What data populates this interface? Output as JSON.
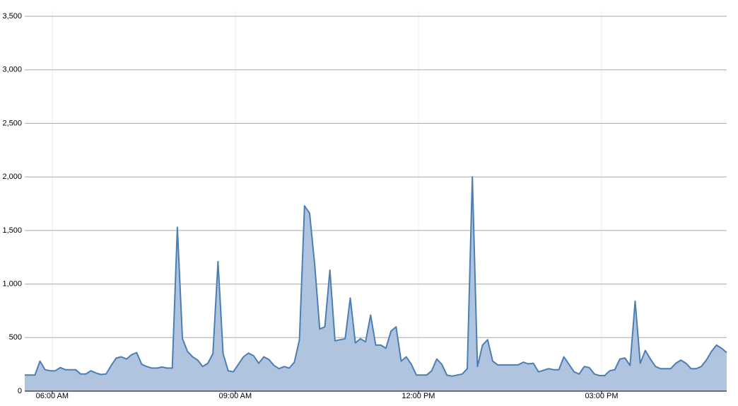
{
  "chart_data": {
    "type": "area",
    "x": [
      333,
      338,
      343,
      348,
      353,
      358,
      363,
      368,
      373,
      378,
      383,
      388,
      393,
      398,
      403,
      408,
      413,
      418,
      423,
      428,
      433,
      438,
      443,
      448,
      453,
      458,
      463,
      468,
      473,
      478,
      483,
      488,
      493,
      498,
      503,
      508,
      513,
      518,
      523,
      528,
      533,
      538,
      543,
      548,
      553,
      558,
      563,
      568,
      573,
      578,
      583,
      588,
      593,
      598,
      603,
      608,
      613,
      618,
      623,
      628,
      633,
      638,
      643,
      648,
      653,
      658,
      663,
      668,
      673,
      678,
      683,
      688,
      693,
      698,
      703,
      708,
      713,
      718,
      723,
      728,
      733,
      738,
      743,
      748,
      753,
      758,
      763,
      768,
      773,
      778,
      783,
      788,
      793,
      798,
      803,
      808,
      813,
      818,
      823,
      828,
      833,
      838,
      843,
      848,
      853,
      858,
      863,
      868,
      873,
      878,
      883,
      888,
      893,
      898,
      903,
      908,
      913,
      918,
      923,
      928,
      933,
      938,
      943,
      948,
      953,
      958,
      963,
      968,
      973,
      978,
      983,
      988,
      993,
      998,
      1003,
      1008,
      1013,
      1018,
      1023
    ],
    "values": [
      150,
      150,
      150,
      280,
      200,
      190,
      190,
      220,
      200,
      200,
      200,
      160,
      160,
      190,
      170,
      155,
      160,
      240,
      310,
      320,
      300,
      340,
      360,
      250,
      230,
      215,
      215,
      225,
      215,
      215,
      1530,
      490,
      370,
      320,
      290,
      230,
      260,
      350,
      1210,
      350,
      190,
      180,
      250,
      320,
      355,
      330,
      260,
      320,
      295,
      240,
      210,
      230,
      215,
      270,
      480,
      1730,
      1660,
      1180,
      580,
      600,
      1130,
      470,
      480,
      490,
      870,
      450,
      490,
      460,
      710,
      430,
      430,
      400,
      560,
      600,
      280,
      320,
      250,
      150,
      150,
      150,
      190,
      300,
      250,
      150,
      140,
      150,
      160,
      210,
      2000,
      230,
      430,
      480,
      280,
      245,
      245,
      245,
      245,
      245,
      270,
      255,
      260,
      180,
      195,
      210,
      200,
      200,
      320,
      250,
      180,
      160,
      230,
      220,
      160,
      145,
      145,
      190,
      200,
      300,
      310,
      240,
      840,
      260,
      380,
      300,
      230,
      210,
      210,
      210,
      260,
      290,
      260,
      210,
      210,
      230,
      290,
      370,
      430,
      400,
      360
    ],
    "color": "#4a7fb5",
    "fill": "#b0c3df",
    "xlim": [
      333,
      1023
    ],
    "xticks": [
      {
        "value": 360,
        "label": "06:00 AM"
      },
      {
        "value": 540,
        "label": "09:00 AM"
      },
      {
        "value": 720,
        "label": "12:00 PM"
      },
      {
        "value": 900,
        "label": "03:00 PM"
      }
    ],
    "ylim": [
      0,
      3500
    ],
    "yticks": [
      0,
      500,
      {
        "value": 1000,
        "label": "1,000"
      },
      {
        "value": 1500,
        "label": "1,500"
      },
      {
        "value": 2000,
        "label": "2,000"
      },
      {
        "value": 2500,
        "label": "2,500"
      },
      {
        "value": 3000,
        "label": "3,000"
      },
      {
        "value": 3500,
        "label": "3,500"
      }
    ],
    "grid": true
  }
}
